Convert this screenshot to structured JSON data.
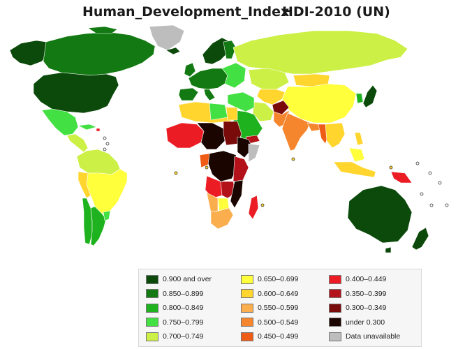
{
  "title": {
    "left": "Human_Development_Index",
    "right": "HDI-2010 (UN)"
  },
  "colors": {
    "ocean": "#ffffff",
    "country_border": "#ffffff",
    "no_data": "#bdbdbd"
  },
  "legend": {
    "columns": [
      [
        {
          "label": "0.900 and over",
          "color": "#0b4a0b"
        },
        {
          "label": "0.850–0.899",
          "color": "#137a13"
        },
        {
          "label": "0.800–0.849",
          "color": "#1fb21f"
        },
        {
          "label": "0.750–0.799",
          "color": "#43e043"
        },
        {
          "label": "0.700–0.749",
          "color": "#ccf046"
        }
      ],
      [
        {
          "label": "0.650–0.699",
          "color": "#ffff3c"
        },
        {
          "label": "0.600–0.649",
          "color": "#ffd52e"
        },
        {
          "label": "0.550–0.599",
          "color": "#fbae4d"
        },
        {
          "label": "0.500–0.549",
          "color": "#f5862e"
        },
        {
          "label": "0.450–0.499",
          "color": "#ee5c18"
        }
      ],
      [
        {
          "label": "0.400–0.449",
          "color": "#ec1c24"
        },
        {
          "label": "0.350–0.399",
          "color": "#b3121a"
        },
        {
          "label": "0.300–0.349",
          "color": "#7a0b0b"
        },
        {
          "label": "under 0.300",
          "color": "#1a0500"
        },
        {
          "label": "Data unavailable",
          "color": "#bdbdbd"
        }
      ]
    ]
  }
}
